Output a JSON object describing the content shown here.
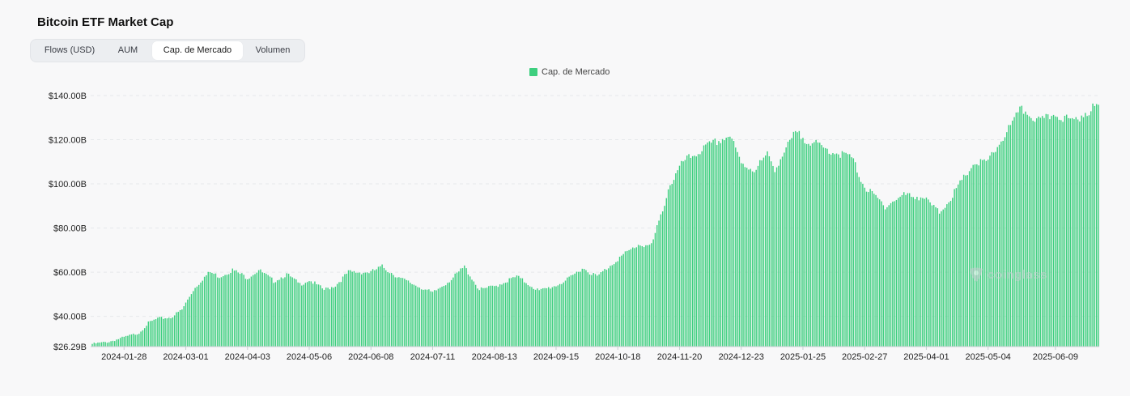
{
  "title": "Bitcoin ETF Market Cap",
  "tabs": [
    {
      "label": "Flows (USD)",
      "active": false
    },
    {
      "label": "AUM",
      "active": false
    },
    {
      "label": "Cap. de Mercado",
      "active": true
    },
    {
      "label": "Volumen",
      "active": false
    }
  ],
  "watermark": "coinglass",
  "colors": {
    "bar": "#3ecf7f",
    "grid": "#e6e8eb"
  },
  "chart_data": {
    "type": "bar",
    "title": "",
    "xlabel": "",
    "ylabel": "",
    "legend": {
      "position": "top-center",
      "entries": [
        "Cap. de Mercado"
      ]
    },
    "grid": true,
    "ylim": [
      26.29,
      140
    ],
    "y_ticks": [
      {
        "value": 140,
        "label": "$140.00B"
      },
      {
        "value": 120,
        "label": "$120.00B"
      },
      {
        "value": 100,
        "label": "$100.00B"
      },
      {
        "value": 80,
        "label": "$80.00B"
      },
      {
        "value": 60,
        "label": "$60.00B"
      },
      {
        "value": 40,
        "label": "$40.00B"
      },
      {
        "value": 26.29,
        "label": "$26.29B"
      }
    ],
    "x_ticks": [
      "2024-01-28",
      "2024-03-01",
      "2024-04-03",
      "2024-05-06",
      "2024-06-08",
      "2024-07-11",
      "2024-08-13",
      "2024-09-15",
      "2024-10-18",
      "2024-11-20",
      "2024-12-23",
      "2025-01-25",
      "2025-02-27",
      "2025-04-01",
      "2025-05-04",
      "2025-06-09"
    ],
    "series": [
      {
        "name": "Cap. de Mercado",
        "unit": "USD billions",
        "start_date": "2024-01-11",
        "interval_days": 1,
        "anchors": [
          [
            "2024-01-11",
            27.5
          ],
          [
            "2024-01-20",
            28.5
          ],
          [
            "2024-01-28",
            30.5
          ],
          [
            "2024-02-05",
            32.5
          ],
          [
            "2024-02-10",
            37.0
          ],
          [
            "2024-02-15",
            39.0
          ],
          [
            "2024-02-22",
            39.5
          ],
          [
            "2024-02-28",
            43.0
          ],
          [
            "2024-03-05",
            52.0
          ],
          [
            "2024-03-10",
            57.0
          ],
          [
            "2024-03-14",
            60.0
          ],
          [
            "2024-03-19",
            58.0
          ],
          [
            "2024-03-26",
            61.0
          ],
          [
            "2024-04-03",
            57.5
          ],
          [
            "2024-04-09",
            61.0
          ],
          [
            "2024-04-17",
            56.0
          ],
          [
            "2024-04-24",
            59.0
          ],
          [
            "2024-05-01",
            54.5
          ],
          [
            "2024-05-06",
            56.5
          ],
          [
            "2024-05-14",
            52.0
          ],
          [
            "2024-05-20",
            54.0
          ],
          [
            "2024-05-27",
            60.0
          ],
          [
            "2024-06-08",
            60.0
          ],
          [
            "2024-06-14",
            62.5
          ],
          [
            "2024-06-24",
            57.0
          ],
          [
            "2024-07-05",
            53.0
          ],
          [
            "2024-07-11",
            50.5
          ],
          [
            "2024-07-22",
            57.5
          ],
          [
            "2024-07-28",
            62.5
          ],
          [
            "2024-08-05",
            52.0
          ],
          [
            "2024-08-13",
            53.5
          ],
          [
            "2024-08-25",
            58.0
          ],
          [
            "2024-09-06",
            51.5
          ],
          [
            "2024-09-15",
            54.0
          ],
          [
            "2024-09-22",
            57.0
          ],
          [
            "2024-09-29",
            62.0
          ],
          [
            "2024-10-07",
            58.0
          ],
          [
            "2024-10-18",
            66.0
          ],
          [
            "2024-10-29",
            72.5
          ],
          [
            "2024-11-05",
            72.0
          ],
          [
            "2024-11-11",
            88.0
          ],
          [
            "2024-11-14",
            98.0
          ],
          [
            "2024-11-22",
            110.0
          ],
          [
            "2024-12-05",
            117.0
          ],
          [
            "2024-12-17",
            122.0
          ],
          [
            "2024-12-23",
            109.0
          ],
          [
            "2024-12-30",
            106.5
          ],
          [
            "2025-01-06",
            113.0
          ],
          [
            "2025-01-10",
            107.0
          ],
          [
            "2025-01-21",
            123.0
          ],
          [
            "2025-01-25",
            121.0
          ],
          [
            "2025-02-05",
            116.0
          ],
          [
            "2025-02-20",
            112.0
          ],
          [
            "2025-02-27",
            98.5
          ],
          [
            "2025-03-10",
            90.0
          ],
          [
            "2025-03-20",
            95.0
          ],
          [
            "2025-03-30",
            94.0
          ],
          [
            "2025-04-08",
            87.0
          ],
          [
            "2025-04-16",
            96.0
          ],
          [
            "2025-04-26",
            109.0
          ],
          [
            "2025-05-04",
            110.0
          ],
          [
            "2025-05-12",
            121.0
          ],
          [
            "2025-05-22",
            134.0
          ],
          [
            "2025-06-01",
            128.0
          ],
          [
            "2025-06-09",
            132.0
          ],
          [
            "2025-06-18",
            128.0
          ],
          [
            "2025-06-26",
            133.0
          ]
        ],
        "end_date": "2025-07-02",
        "end_value": 135.0
      }
    ]
  }
}
